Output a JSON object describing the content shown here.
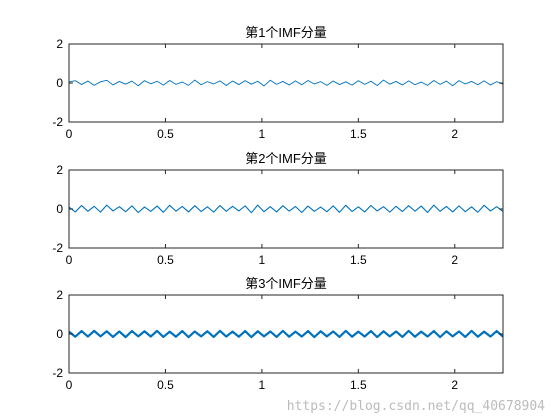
{
  "figure": {
    "background": "#ffffff",
    "line_color": "#0072BD",
    "axes_color": "#262626"
  },
  "watermark": "https://blog.csdn.net/qq_40678904",
  "chart_data": [
    {
      "type": "line",
      "title": "第1个IMF分量",
      "xlabel": "",
      "ylabel": "",
      "xlim": [
        0,
        2.25
      ],
      "ylim": [
        -2,
        2
      ],
      "xticks": [
        0,
        0.5,
        1,
        1.5,
        2
      ],
      "xtick_labels": [
        "0",
        "0.5",
        "1",
        "1.5",
        "2"
      ],
      "yticks": [
        -2,
        0,
        2
      ],
      "ytick_labels": [
        "-2",
        "0",
        "2"
      ],
      "grid": false,
      "series": [
        {
          "values": [
            0.05,
            0.12,
            -0.08,
            0.1,
            -0.12,
            0.06,
            0.14,
            -0.1,
            0.08,
            -0.06,
            0.1,
            -0.14,
            0.12,
            -0.04,
            0.09,
            -0.11,
            0.13,
            -0.07,
            0.05,
            -0.12,
            0.15,
            -0.09,
            0.07,
            -0.05,
            0.11,
            -0.13,
            0.1,
            -0.08,
            0.12,
            -0.06,
            0.09,
            -0.15,
            0.14,
            -0.07,
            0.08,
            -0.1,
            0.11,
            -0.09,
            0.13,
            -0.05,
            0.07,
            -0.12,
            0.1,
            -0.08,
            0.06,
            -0.11,
            0.12,
            -0.07,
            0.09,
            -0.13,
            0.15,
            -0.06,
            0.08,
            -0.1,
            0.11,
            -0.09,
            0.05,
            -0.12,
            0.13,
            -0.07,
            0.1,
            -0.14,
            0.12,
            -0.05,
            0.08,
            -0.09,
            0.11,
            -0.1,
            0.07,
            -0.06
          ]
        }
      ]
    },
    {
      "type": "line",
      "title": "第2个IMF分量",
      "xlabel": "",
      "ylabel": "",
      "xlim": [
        0,
        2.25
      ],
      "ylim": [
        -2,
        2
      ],
      "xticks": [
        0,
        0.5,
        1,
        1.5,
        2
      ],
      "xtick_labels": [
        "0",
        "0.5",
        "1",
        "1.5",
        "2"
      ],
      "yticks": [
        -2,
        0,
        2
      ],
      "ytick_labels": [
        "-2",
        "0",
        "2"
      ],
      "grid": false,
      "series": [
        {
          "values": [
            0.1,
            -0.15,
            0.18,
            -0.12,
            0.14,
            -0.16,
            0.2,
            -0.1,
            0.12,
            -0.14,
            0.16,
            -0.18,
            0.1,
            -0.12,
            0.15,
            -0.17,
            0.19,
            -0.11,
            0.13,
            -0.15,
            0.17,
            -0.13,
            0.11,
            -0.16,
            0.18,
            -0.12,
            0.14,
            -0.1,
            0.16,
            -0.19,
            0.2,
            -0.14,
            0.12,
            -0.15,
            0.17,
            -0.11,
            0.13,
            -0.18,
            0.15,
            -0.12,
            0.1,
            -0.14,
            0.16,
            -0.17,
            0.19,
            -0.13,
            0.11,
            -0.15,
            0.18,
            -0.1,
            0.12,
            -0.16,
            0.14,
            -0.13,
            0.17,
            -0.11,
            0.15,
            -0.18,
            0.2,
            -0.12,
            0.13,
            -0.15,
            0.16,
            -0.14,
            0.11,
            -0.17,
            0.19,
            -0.1,
            0.12,
            -0.13
          ]
        }
      ]
    },
    {
      "type": "line",
      "title": "第3个IMF分量",
      "xlabel": "",
      "ylabel": "",
      "xlim": [
        0,
        2.25
      ],
      "ylim": [
        -2,
        2
      ],
      "xticks": [
        0,
        0.5,
        1,
        1.5,
        2
      ],
      "xtick_labels": [
        "0",
        "0.5",
        "1",
        "1.5",
        "2"
      ],
      "yticks": [
        -2,
        0,
        2
      ],
      "ytick_labels": [
        "-2",
        "0",
        "2"
      ],
      "grid": false,
      "series": [
        {
          "values": [
            0.12,
            -0.14,
            0.15,
            -0.13,
            0.16,
            -0.12,
            0.14,
            -0.15,
            0.13,
            -0.16,
            0.15,
            -0.12,
            0.14,
            -0.13,
            0.16,
            -0.15,
            0.12,
            -0.14,
            0.15,
            -0.16,
            0.13,
            -0.12,
            0.14,
            -0.15,
            0.16,
            -0.13,
            0.12,
            -0.14,
            0.15,
            -0.16,
            0.14,
            -0.12,
            0.13,
            -0.15,
            0.16,
            -0.14,
            0.12,
            -0.13,
            0.15,
            -0.16,
            0.14,
            -0.12,
            0.13,
            -0.15,
            0.16,
            -0.14,
            0.12,
            -0.13,
            0.15,
            -0.16,
            0.14,
            -0.12,
            0.13,
            -0.15,
            0.16,
            -0.14,
            0.12,
            -0.13,
            0.15,
            -0.16,
            0.14,
            -0.12,
            0.13,
            -0.15,
            0.16,
            -0.14,
            0.12,
            -0.13,
            0.15,
            -0.14
          ]
        }
      ]
    }
  ]
}
